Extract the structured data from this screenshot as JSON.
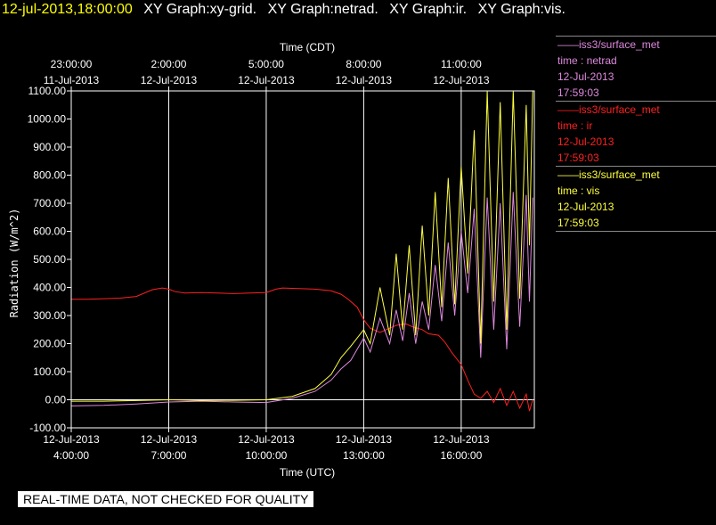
{
  "header": {
    "timestamp": "12-jul-2013,18:00:00",
    "graphs": [
      "XY Graph:xy-grid.",
      "XY Graph:netrad.",
      "XY Graph:ir.",
      "XY Graph:vis."
    ]
  },
  "legend": [
    {
      "source": "——iss3/surface_met",
      "var": "time : netrad",
      "date": "12-Jul-2013",
      "time": "17:59:03",
      "color": "#dd88dd"
    },
    {
      "source": "——iss3/surface_met",
      "var": "time : ir",
      "date": "12-Jul-2013",
      "time": "17:59:03",
      "color": "#ff2020"
    },
    {
      "source": "——iss3/surface_met",
      "var": "time : vis",
      "date": "12-Jul-2013",
      "time": "17:59:03",
      "color": "#ffff40"
    }
  ],
  "banner": "REAL-TIME DATA, NOT CHECKED FOR QUALITY",
  "chart_data": {
    "type": "line",
    "ylabel": "Radiation (W/m^2)",
    "xlabel_bottom": "Time (UTC)",
    "xlabel_top": "Time (CDT)",
    "ylim": [
      -100,
      1100
    ],
    "xlim": [
      4.0,
      18.25
    ],
    "grid": true,
    "yticks": [
      "-100.00",
      "0.00",
      "100.00",
      "200.00",
      "300.00",
      "400.00",
      "500.00",
      "600.00",
      "700.00",
      "800.00",
      "900.00",
      "1000.00",
      "1100.00"
    ],
    "xticks_bottom": [
      {
        "x": 4,
        "date": "12-Jul-2013",
        "time": "4:00:00"
      },
      {
        "x": 7,
        "date": "12-Jul-2013",
        "time": "7:00:00"
      },
      {
        "x": 10,
        "date": "12-Jul-2013",
        "time": "10:00:00"
      },
      {
        "x": 13,
        "date": "12-Jul-2013",
        "time": "13:00:00"
      },
      {
        "x": 16,
        "date": "12-Jul-2013",
        "time": "16:00:00"
      }
    ],
    "xticks_top": [
      {
        "x": 4,
        "time": "23:00:00",
        "date": "11-Jul-2013"
      },
      {
        "x": 7,
        "time": "2:00:00",
        "date": "12-Jul-2013"
      },
      {
        "x": 10,
        "time": "5:00:00",
        "date": "12-Jul-2013"
      },
      {
        "x": 13,
        "time": "8:00:00",
        "date": "12-Jul-2013"
      },
      {
        "x": 16,
        "time": "11:00:00",
        "date": "12-Jul-2013"
      }
    ],
    "series": [
      {
        "name": "time : ir",
        "color": "#ff2020",
        "x": [
          4.0,
          4.5,
          5.0,
          5.5,
          6.0,
          6.5,
          6.8,
          7.0,
          7.2,
          7.5,
          8.0,
          8.5,
          9.0,
          9.5,
          10.0,
          10.3,
          10.5,
          11.0,
          11.5,
          12.0,
          12.3,
          12.5,
          12.8,
          13.0,
          13.2,
          13.5,
          13.8,
          14.0,
          14.3,
          14.5,
          14.8,
          15.0,
          15.3,
          15.5,
          15.7,
          16.0,
          16.2,
          16.4,
          16.6,
          16.8,
          17.0,
          17.2,
          17.4,
          17.6,
          17.8,
          18.0,
          18.1,
          18.2
        ],
        "values": [
          358,
          358,
          360,
          362,
          368,
          392,
          398,
          394,
          385,
          380,
          382,
          380,
          378,
          380,
          382,
          394,
          398,
          396,
          394,
          388,
          376,
          360,
          330,
          285,
          255,
          240,
          255,
          265,
          270,
          260,
          250,
          235,
          230,
          205,
          170,
          125,
          70,
          20,
          5,
          30,
          -10,
          40,
          -20,
          30,
          -30,
          20,
          -40,
          0
        ]
      },
      {
        "name": "time : netrad",
        "color": "#dd88dd",
        "x": [
          4.0,
          5.0,
          6.0,
          7.0,
          8.0,
          9.0,
          10.0,
          10.8,
          11.5,
          12.0,
          12.3,
          12.6,
          13.0,
          13.2,
          13.5,
          13.8,
          14.0,
          14.2,
          14.4,
          14.6,
          14.8,
          15.0,
          15.2,
          15.4,
          15.6,
          15.8,
          16.0,
          16.2,
          16.4,
          16.6,
          16.8,
          17.0,
          17.2,
          17.4,
          17.6,
          17.8,
          18.0,
          18.1,
          18.2
        ],
        "values": [
          -22,
          -20,
          -15,
          -8,
          -5,
          -8,
          -10,
          5,
          30,
          70,
          110,
          140,
          220,
          170,
          290,
          200,
          320,
          210,
          380,
          200,
          350,
          250,
          480,
          280,
          560,
          300,
          600,
          380,
          680,
          150,
          720,
          250,
          700,
          180,
          740,
          260,
          730,
          350,
          720
        ]
      },
      {
        "name": "time : vis",
        "color": "#ffff40",
        "x": [
          4.0,
          5.0,
          6.0,
          7.0,
          8.0,
          9.0,
          10.0,
          10.8,
          11.5,
          12.0,
          12.3,
          12.6,
          13.0,
          13.2,
          13.5,
          13.8,
          14.0,
          14.2,
          14.4,
          14.6,
          14.8,
          15.0,
          15.2,
          15.4,
          15.6,
          15.8,
          16.0,
          16.2,
          16.4,
          16.6,
          16.8,
          17.0,
          17.2,
          17.4,
          17.6,
          17.8,
          18.0,
          18.1,
          18.2
        ],
        "values": [
          -5,
          -5,
          -3,
          0,
          -3,
          -2,
          0,
          12,
          40,
          90,
          150,
          190,
          250,
          200,
          400,
          230,
          520,
          250,
          550,
          230,
          620,
          300,
          740,
          330,
          790,
          340,
          830,
          450,
          960,
          200,
          1100,
          350,
          1060,
          250,
          1100,
          360,
          1050,
          550,
          1100
        ]
      }
    ]
  }
}
